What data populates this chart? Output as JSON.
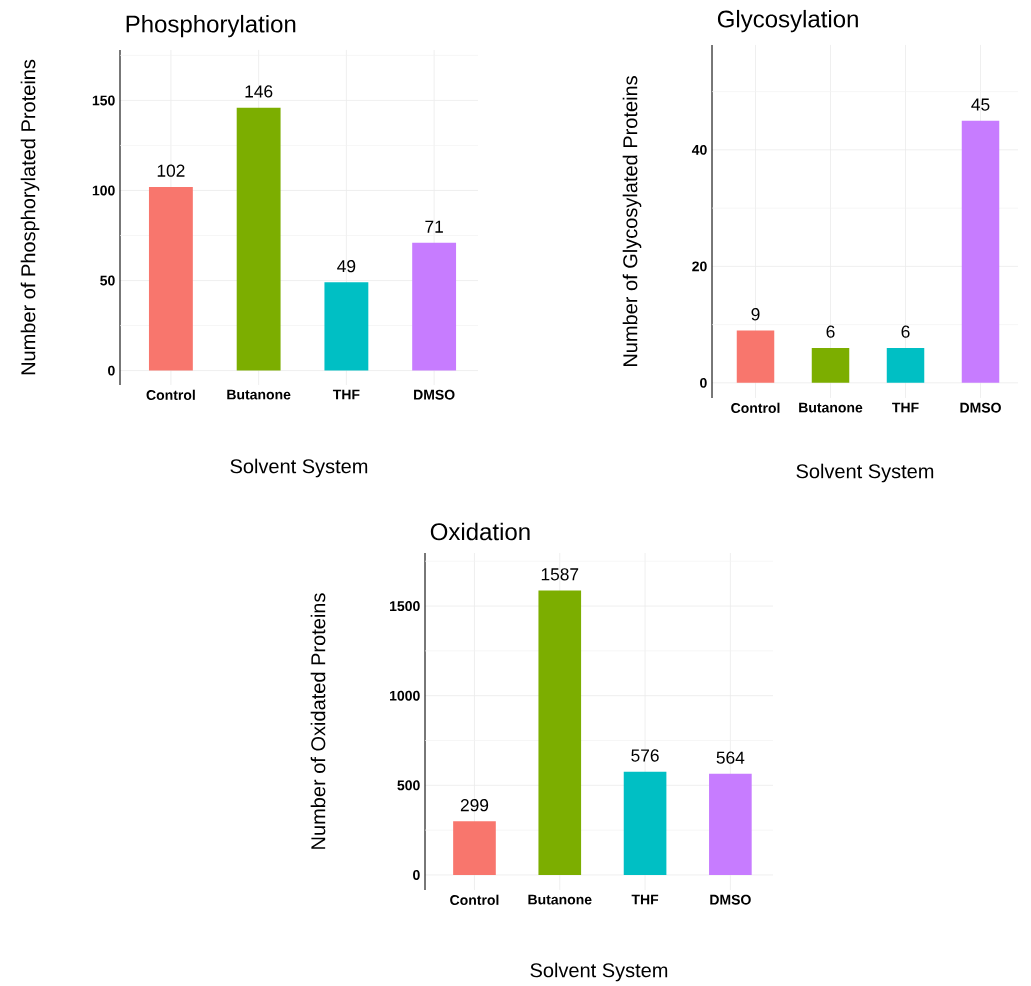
{
  "chart_data": [
    {
      "type": "bar",
      "title": "Phosphorylation",
      "xlabel": "Solvent System",
      "ylabel": "Number of Phosphorylated Proteins",
      "categories": [
        "Control",
        "Butanone",
        "THF",
        "DMSO"
      ],
      "values": [
        102,
        146,
        49,
        71
      ],
      "colors": [
        "#f8766d",
        "#7cae00",
        "#00bfc4",
        "#c77cff"
      ],
      "ylim": [
        -8,
        178
      ],
      "yticks": [
        0,
        {
          "value": 25,
          "label": null
        },
        50,
        {
          "value": 75,
          "label": null
        },
        100,
        {
          "value": 125,
          "label": null
        },
        150,
        {
          "value": 175,
          "label": null
        }
      ],
      "grid": true,
      "data_labels": true
    },
    {
      "type": "bar",
      "title": "Glycosylation",
      "xlabel": "Solvent System",
      "ylabel": "Number of Glycosylated Proteins",
      "categories": [
        "Control",
        "Butanone",
        "THF",
        "DMSO"
      ],
      "values": [
        9,
        6,
        6,
        45
      ],
      "colors": [
        "#f8766d",
        "#7cae00",
        "#00bfc4",
        "#c77cff"
      ],
      "ylim": [
        -2.6,
        58
      ],
      "yticks": [
        0,
        {
          "value": 10,
          "label": null
        },
        20,
        {
          "value": 30,
          "label": null
        },
        40,
        {
          "value": 50,
          "label": null
        }
      ],
      "grid": true,
      "data_labels": true
    },
    {
      "type": "bar",
      "title": "Oxidation",
      "xlabel": "Solvent System",
      "ylabel": "Number of Oxidated Proteins",
      "categories": [
        "Control",
        "Butanone",
        "THF",
        "DMSO"
      ],
      "values": [
        299,
        1587,
        576,
        564
      ],
      "colors": [
        "#f8766d",
        "#7cae00",
        "#00bfc4",
        "#c77cff"
      ],
      "ylim": [
        -84,
        1796
      ],
      "yticks": [
        0,
        {
          "value": 250,
          "label": null
        },
        500,
        {
          "value": 750,
          "label": null
        },
        1000,
        {
          "value": 1250,
          "label": null
        },
        1500,
        {
          "value": 1750,
          "label": null
        }
      ],
      "grid": true,
      "data_labels": true
    }
  ]
}
